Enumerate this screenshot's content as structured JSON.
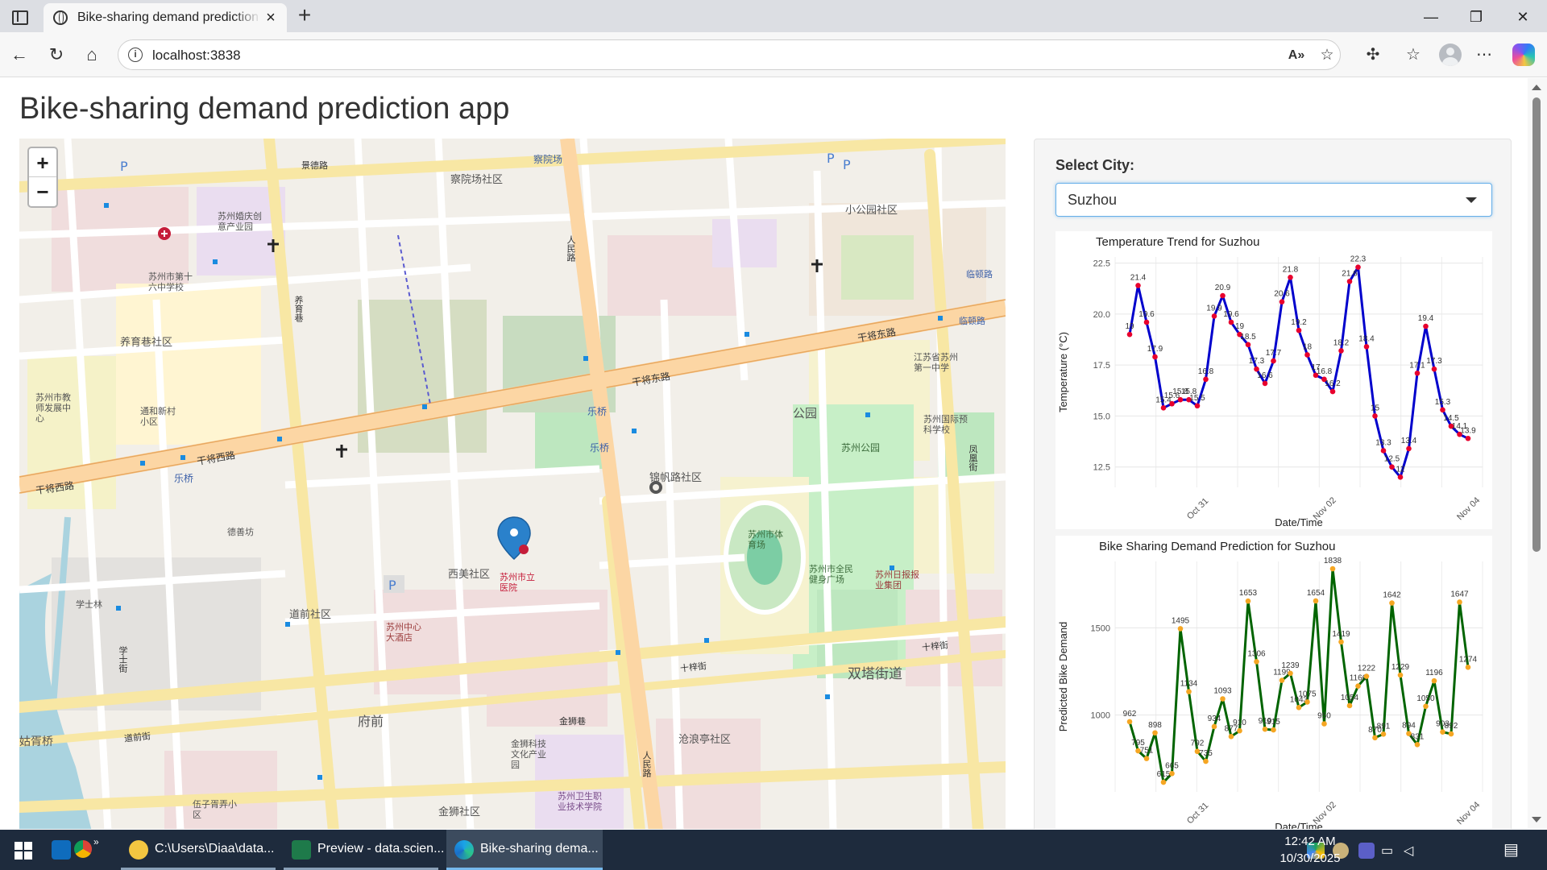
{
  "browser": {
    "tab_title": "Bike-sharing demand prediction app",
    "url": "localhost:3838"
  },
  "page": {
    "title": "Bike-sharing demand prediction app"
  },
  "map": {
    "zoom_in": "+",
    "zoom_out": "−",
    "labels": [
      {
        "id": "l1",
        "text": "苏州市第十六中学校"
      },
      {
        "id": "l2",
        "text": "养育巷社区"
      },
      {
        "id": "l3",
        "text": "苏州市教师发展中心"
      },
      {
        "id": "l4",
        "text": "通和新村小区"
      },
      {
        "id": "l5",
        "text": "苏州婚庆创意产业园"
      },
      {
        "id": "l6",
        "text": "察院场社区"
      },
      {
        "id": "l7",
        "text": "察院场"
      },
      {
        "id": "l8",
        "text": "小公园社区"
      },
      {
        "id": "l9",
        "text": "江苏省苏州第一中学"
      },
      {
        "id": "l10",
        "text": "苏州国际预科学校"
      },
      {
        "id": "l11",
        "text": "苏州公园"
      },
      {
        "id": "l12",
        "text": "公园"
      },
      {
        "id": "l13",
        "text": "苏州市体育场"
      },
      {
        "id": "l14",
        "text": "苏州市全民健身广场"
      },
      {
        "id": "l15",
        "text": "苏州日报报业集团"
      },
      {
        "id": "l16",
        "text": "锦帆路社区"
      },
      {
        "id": "l17",
        "text": "西美社区"
      },
      {
        "id": "l18",
        "text": "苏州市立医院"
      },
      {
        "id": "l19",
        "text": "苏州中心大酒店"
      },
      {
        "id": "l20",
        "text": "道前社区"
      },
      {
        "id": "l21",
        "text": "德善坊"
      },
      {
        "id": "l22",
        "text": "学士林"
      },
      {
        "id": "l23",
        "text": "府前"
      },
      {
        "id": "l24",
        "text": "双塔街道"
      },
      {
        "id": "l25",
        "text": "沧浪亭社区"
      },
      {
        "id": "l26",
        "text": "金狮科技文化产业园"
      },
      {
        "id": "l27",
        "text": "苏州卫生职业技术学院"
      },
      {
        "id": "l28",
        "text": "金狮社区"
      },
      {
        "id": "l29",
        "text": "伍子胥弄小区"
      },
      {
        "id": "l30",
        "text": "姑胥桥"
      },
      {
        "id": "l31",
        "text": "干将西路"
      },
      {
        "id": "l32",
        "text": "干将西路"
      },
      {
        "id": "l33",
        "text": "干将东路"
      },
      {
        "id": "l34",
        "text": "干将东路"
      },
      {
        "id": "l35",
        "text": "乐桥"
      },
      {
        "id": "l36",
        "text": "乐桥"
      },
      {
        "id": "l37",
        "text": "乐桥"
      },
      {
        "id": "l38",
        "text": "道前街"
      },
      {
        "id": "l39",
        "text": "十梓街"
      },
      {
        "id": "l40",
        "text": "十梓街"
      },
      {
        "id": "l41",
        "text": "人民路"
      },
      {
        "id": "l42",
        "text": "人民路"
      },
      {
        "id": "l43",
        "text": "养育巷"
      },
      {
        "id": "l44",
        "text": "临顿路"
      },
      {
        "id": "l45",
        "text": "临顿路"
      },
      {
        "id": "l46",
        "text": "凤凰街"
      },
      {
        "id": "l47",
        "text": "景德路"
      },
      {
        "id": "l48",
        "text": "学士街"
      },
      {
        "id": "l49",
        "text": "金狮巷"
      }
    ]
  },
  "controls": {
    "city_label": "Select City:",
    "city_value": "Suzhou"
  },
  "colors": {
    "temp_line": "#0000cc",
    "temp_point": "#e8002d",
    "demand_line": "#006400",
    "demand_point": "#f5a623"
  },
  "chart_data": [
    {
      "type": "line",
      "title": "Temperature Trend for Suzhou",
      "xlabel": "Date/Time",
      "ylabel": "Temperature (°C)",
      "ylim": [
        11.5,
        22.8
      ],
      "yticks": [
        12.5,
        15.0,
        17.5,
        20.0,
        22.5
      ],
      "ytick_labels": [
        "12.5",
        "15.0",
        "17.5",
        "20.0",
        "22.5"
      ],
      "xtick_labels": [
        "Oct 31",
        "Nov 02",
        "Nov 04"
      ],
      "grid": true,
      "values": [
        19,
        21.4,
        19.6,
        17.9,
        15.4,
        15.6,
        15.8,
        15.8,
        15.5,
        16.8,
        19.9,
        20.9,
        19.6,
        19,
        18.5,
        17.3,
        16.6,
        17.7,
        20.6,
        21.8,
        19.2,
        18,
        17,
        16.8,
        16.2,
        18.2,
        21.6,
        22.3,
        18.4,
        15,
        13.3,
        12.5,
        12,
        13.4,
        17.1,
        19.4,
        17.3,
        15.3,
        14.5,
        14.1,
        13.9
      ],
      "point_labels": [
        "19",
        "21.4",
        "19.6",
        "17.9",
        "15.4",
        "15.6",
        "15.8",
        "15.8",
        "15.5",
        "16.8",
        "19.9",
        "20.9",
        "19.6",
        "19",
        "18.5",
        "17.3",
        "16.6",
        "17.7",
        "20.6",
        "21.8",
        "19.2",
        "18",
        "17",
        "16.8",
        "16.2",
        "18.2",
        "21.6",
        "22.3",
        "18.4",
        "15",
        "13.3",
        "12.5",
        "12",
        "13.4",
        "17.1",
        "19.4",
        "17.3",
        "15.3",
        "14.5",
        "14.1",
        "13.9"
      ]
    },
    {
      "type": "line",
      "title": "Bike Sharing Demand Prediction for Suzhou",
      "xlabel": "Date/Time",
      "ylabel": "Predicted Bike Demand",
      "ylim": [
        560,
        1880
      ],
      "yticks": [
        1000,
        1500
      ],
      "ytick_labels": [
        "1000",
        "1500"
      ],
      "xtick_labels": [
        "Oct 31",
        "Nov 02",
        "Nov 04"
      ],
      "grid": true,
      "values": [
        962,
        795,
        751,
        898,
        615,
        665,
        1495,
        1134,
        792,
        735,
        934,
        1093,
        877,
        910,
        1653,
        1306,
        919,
        915,
        1199,
        1239,
        1043,
        1075,
        1654,
        950,
        1838,
        1419,
        1054,
        1166,
        1222,
        870,
        891,
        1642,
        1229,
        894,
        831,
        1050,
        1196,
        903,
        892,
        1647,
        1274
      ],
      "point_labels": [
        "962",
        "795",
        "751",
        "898",
        "615",
        "665",
        "1495",
        "1134",
        "792",
        "735",
        "934",
        "1093",
        "877",
        "910",
        "1653",
        "1306",
        "919",
        "915",
        "1199",
        "1239",
        "1043",
        "1075",
        "1654",
        "950",
        "1838",
        "1419",
        "1054",
        "1166",
        "1222",
        "870",
        "891",
        "1642",
        "1229",
        "894",
        "831",
        "1050",
        "1196",
        "903",
        "892",
        "1647",
        "1274"
      ]
    }
  ],
  "taskbar": {
    "apps": [
      {
        "label": "C:\\Users\\Diaa\\data..."
      },
      {
        "label": "Preview - data.scien..."
      },
      {
        "label": "Bike-sharing dema..."
      }
    ],
    "time": "12:42 AM",
    "date": "10/30/2025"
  }
}
